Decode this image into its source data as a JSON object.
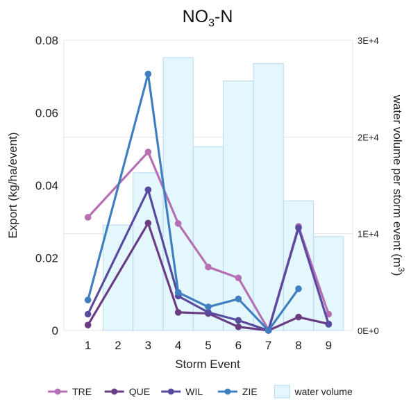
{
  "chart_data": {
    "type": "line",
    "title": {
      "main": "NO",
      "sub": "3",
      "rest": "-N"
    },
    "xlabel": "Storm Event",
    "ylabel": "Export (kg/ha/event)",
    "y2label": {
      "main": "water volume per storm event (m",
      "sup": "3",
      "end": ")"
    },
    "x": [
      1,
      2,
      3,
      4,
      5,
      6,
      7,
      8,
      9
    ],
    "xlim": [
      0.2,
      9.8
    ],
    "ylim": [
      0,
      0.08
    ],
    "y2lim": [
      0,
      30000
    ],
    "yticks": [
      "0",
      "0.02",
      "0.04",
      "0.06",
      "0.08"
    ],
    "yticks_values": [
      0,
      0.02,
      0.04,
      0.06,
      0.08
    ],
    "y2ticks": [
      "0E+0",
      "1E+4",
      "2E+4",
      "3E+4"
    ],
    "y2ticks_values": [
      0,
      10000,
      20000,
      30000
    ],
    "grid": true,
    "legend_position": "bottom",
    "bars": {
      "name": "water volume",
      "color": "#e3f7fc",
      "stroke": "#b9d9f2",
      "values": [
        null,
        10900,
        16300,
        28200,
        19000,
        25800,
        27600,
        13400,
        9700
      ]
    },
    "series": [
      {
        "name": "TRE",
        "color": "#b66fb3",
        "values": [
          0.0312,
          null,
          0.0492,
          0.0295,
          0.0175,
          0.0145,
          0.0002,
          0.0287,
          0.0045
        ]
      },
      {
        "name": "QUE",
        "color": "#6a3c82",
        "values": [
          0.0015,
          null,
          0.0296,
          0.005,
          0.0047,
          0.001,
          0.0,
          0.0037,
          0.0018
        ]
      },
      {
        "name": "WIL",
        "color": "#584a9e",
        "values": [
          0.0045,
          null,
          0.0388,
          0.0095,
          0.005,
          0.0028,
          0.0,
          0.0283,
          0.0017
        ]
      },
      {
        "name": "ZIE",
        "color": "#3f7fbf",
        "values": [
          0.0084,
          null,
          0.0707,
          0.0105,
          0.0065,
          0.0087,
          0.0,
          0.0115,
          null
        ]
      }
    ]
  }
}
